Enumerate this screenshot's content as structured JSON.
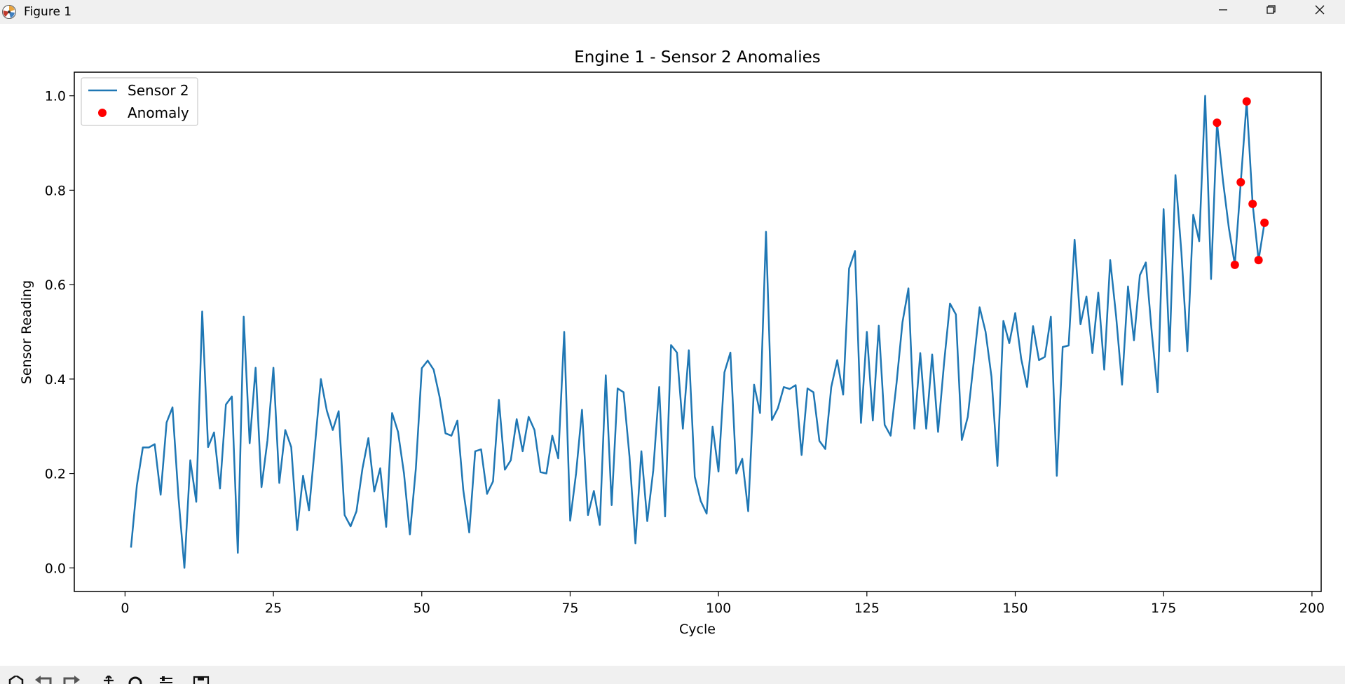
{
  "window": {
    "title": "Figure 1",
    "icon": "matplotlib-logo-icon",
    "buttons": [
      "minimize-icon",
      "restore-icon",
      "close-icon"
    ]
  },
  "toolbar": {
    "icons": [
      "home-icon",
      "back-icon",
      "forward-icon",
      "pan-icon",
      "zoom-icon",
      "configure-subplots-icon",
      "save-icon"
    ]
  },
  "chart_data": {
    "type": "line",
    "title": "Engine 1 - Sensor 2 Anomalies",
    "xlabel": "Cycle",
    "ylabel": "Sensor Reading",
    "xlim": [
      -8.55,
      201.55
    ],
    "ylim": [
      -0.05,
      1.05
    ],
    "xticks": [
      0,
      25,
      50,
      75,
      100,
      125,
      150,
      175,
      200
    ],
    "xtick_labels": [
      "0",
      "25",
      "50",
      "75",
      "100",
      "125",
      "150",
      "175",
      "200"
    ],
    "yticks": [
      0.0,
      0.2,
      0.4,
      0.6,
      0.8,
      1.0
    ],
    "ytick_labels": [
      "0.0",
      "0.2",
      "0.4",
      "0.6",
      "0.8",
      "1.0"
    ],
    "grid": false,
    "legend_position": "top-left",
    "colors": {
      "line": "#1f77b4",
      "anomaly": "#ff0000"
    },
    "series": [
      {
        "name": "Sensor 2",
        "kind": "line",
        "x_start": 1,
        "x_step": 1,
        "values": [
          0.043,
          0.175,
          0.255,
          0.255,
          0.262,
          0.155,
          0.308,
          0.34,
          0.15,
          0.0,
          0.228,
          0.14,
          0.543,
          0.256,
          0.287,
          0.168,
          0.346,
          0.363,
          0.032,
          0.532,
          0.264,
          0.424,
          0.171,
          0.27,
          0.424,
          0.18,
          0.292,
          0.256,
          0.08,
          0.195,
          0.122,
          0.26,
          0.4,
          0.333,
          0.292,
          0.332,
          0.112,
          0.088,
          0.12,
          0.21,
          0.275,
          0.162,
          0.211,
          0.087,
          0.328,
          0.288,
          0.2,
          0.071,
          0.21,
          0.423,
          0.439,
          0.42,
          0.362,
          0.285,
          0.28,
          0.312,
          0.165,
          0.075,
          0.247,
          0.251,
          0.157,
          0.183,
          0.356,
          0.208,
          0.228,
          0.315,
          0.247,
          0.32,
          0.292,
          0.203,
          0.2,
          0.28,
          0.232,
          0.5,
          0.1,
          0.2,
          0.335,
          0.112,
          0.163,
          0.091,
          0.408,
          0.133,
          0.38,
          0.372,
          0.237,
          0.052,
          0.247,
          0.099,
          0.206,
          0.383,
          0.109,
          0.472,
          0.456,
          0.295,
          0.461,
          0.193,
          0.142,
          0.115,
          0.299,
          0.204,
          0.414,
          0.456,
          0.2,
          0.231,
          0.12,
          0.388,
          0.328,
          0.712,
          0.313,
          0.338,
          0.383,
          0.379,
          0.387,
          0.239,
          0.38,
          0.372,
          0.269,
          0.252,
          0.383,
          0.44,
          0.367,
          0.634,
          0.671,
          0.307,
          0.5,
          0.312,
          0.513,
          0.303,
          0.28,
          0.392,
          0.52,
          0.592,
          0.295,
          0.455,
          0.295,
          0.452,
          0.288,
          0.433,
          0.56,
          0.537,
          0.271,
          0.32,
          0.435,
          0.552,
          0.5,
          0.405,
          0.216,
          0.523,
          0.476,
          0.54,
          0.443,
          0.383,
          0.512,
          0.44,
          0.447,
          0.532,
          0.195,
          0.468,
          0.471,
          0.695,
          0.516,
          0.575,
          0.455,
          0.583,
          0.42,
          0.652,
          0.532,
          0.388,
          0.596,
          0.482,
          0.62,
          0.647,
          0.499,
          0.372,
          0.76,
          0.459,
          0.832,
          0.668,
          0.459,
          0.748,
          0.692,
          1.0,
          0.612,
          0.943,
          0.82,
          0.72,
          0.642,
          0.817,
          0.988,
          0.771,
          0.652,
          0.731
        ]
      },
      {
        "name": "Anomaly",
        "kind": "scatter",
        "points": [
          {
            "x": 184,
            "y": 0.943
          },
          {
            "x": 187,
            "y": 0.642
          },
          {
            "x": 188,
            "y": 0.817
          },
          {
            "x": 189,
            "y": 0.988
          },
          {
            "x": 190,
            "y": 0.771
          },
          {
            "x": 191,
            "y": 0.652
          },
          {
            "x": 192,
            "y": 0.731
          }
        ]
      }
    ]
  }
}
